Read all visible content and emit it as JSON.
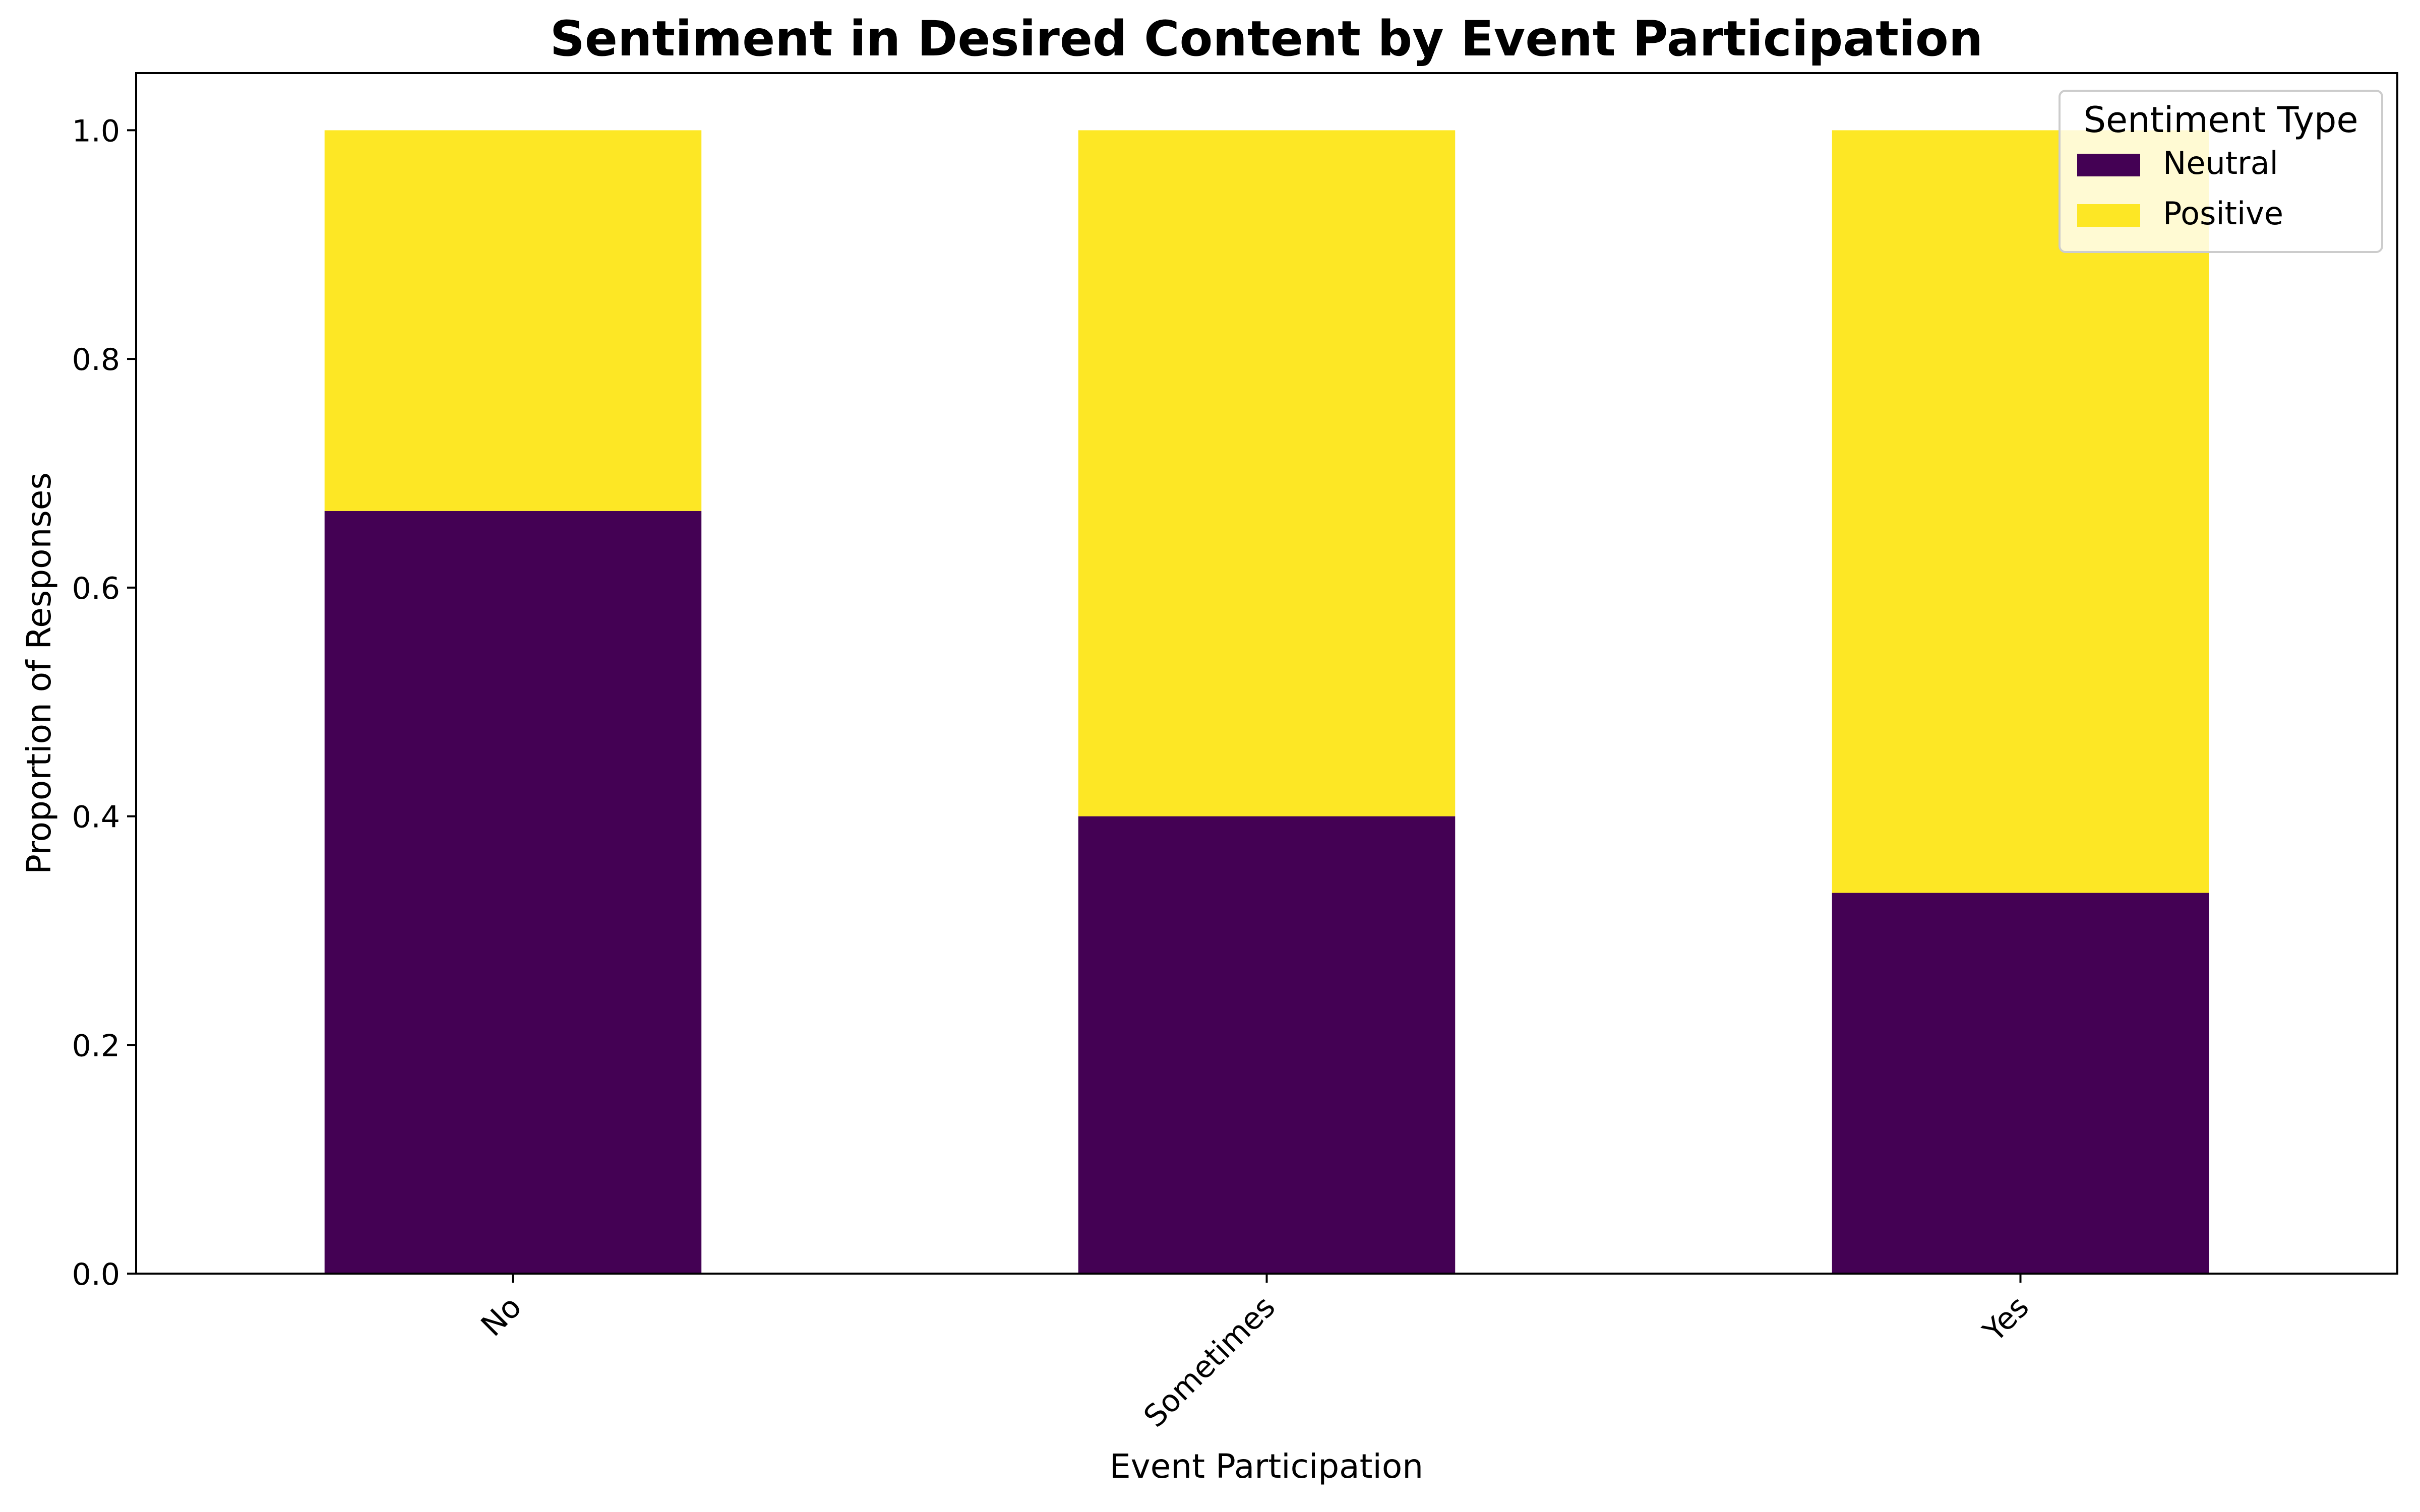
{
  "chart_data": {
    "type": "bar",
    "stacked": true,
    "title": "Sentiment in Desired Content by Event Participation",
    "xlabel": "Event Participation",
    "ylabel": "Proportion of Responses",
    "categories": [
      "No",
      "Sometimes",
      "Yes"
    ],
    "series": [
      {
        "name": "Neutral",
        "color": "#440154",
        "values": [
          0.667,
          0.4,
          0.333
        ]
      },
      {
        "name": "Positive",
        "color": "#fde725",
        "values": [
          0.333,
          0.6,
          0.667
        ]
      }
    ],
    "ylim": [
      0,
      1.05
    ],
    "yticks": [
      "0.0",
      "0.2",
      "0.4",
      "0.6",
      "0.8",
      "1.0"
    ],
    "grid": false,
    "legend": {
      "title": "Sentiment Type",
      "position": "top-right"
    }
  }
}
